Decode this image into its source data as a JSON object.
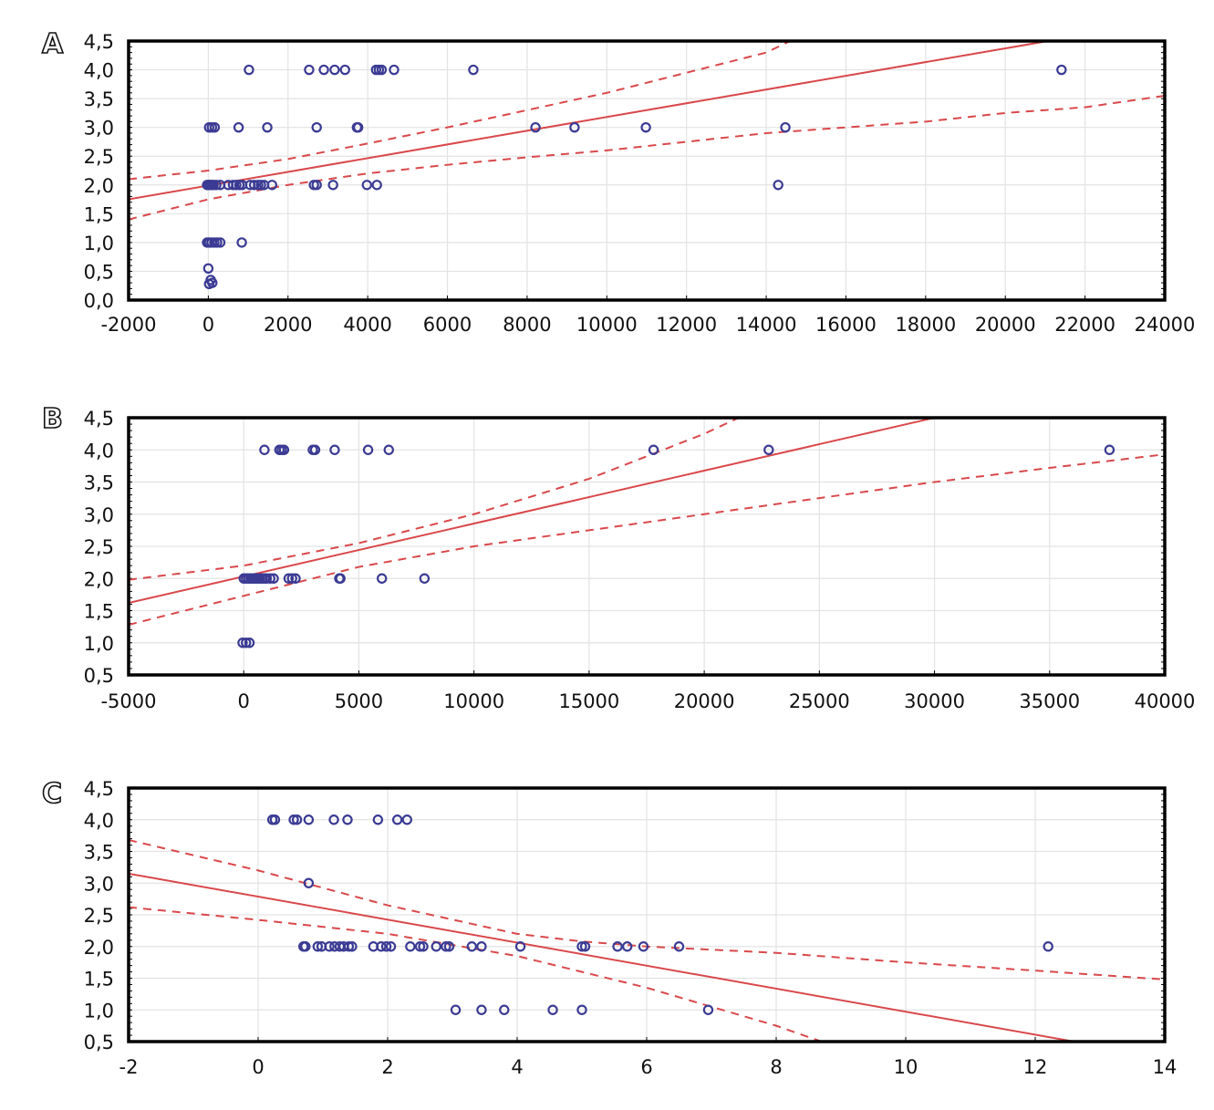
{
  "figure": {
    "panels": [
      "A",
      "B",
      "C"
    ]
  },
  "chart_data": [
    {
      "panel": "A",
      "type": "scatter",
      "title": "",
      "xlabel": "",
      "ylabel": "",
      "xlim": [
        -2000,
        24000
      ],
      "ylim": [
        0,
        4.5
      ],
      "xticks": [
        -2000,
        0,
        2000,
        4000,
        6000,
        8000,
        10000,
        12000,
        14000,
        16000,
        18000,
        20000,
        22000,
        24000
      ],
      "xtick_labels": [
        "-2000",
        "0",
        "2000",
        "4000",
        "6000",
        "8000",
        "10000",
        "12000",
        "14000",
        "16000",
        "18000",
        "20000",
        "22000",
        "24000"
      ],
      "yticks": [
        0,
        0.5,
        1,
        1.5,
        2,
        2.5,
        3,
        3.5,
        4,
        4.5
      ],
      "ytick_labels": [
        "0,0",
        "0,5",
        "1,0",
        "1,5",
        "2,0",
        "2,5",
        "3,0",
        "3,5",
        "4,0",
        "4,5"
      ],
      "grid": true,
      "points": [
        [
          1020,
          4
        ],
        [
          2530,
          4
        ],
        [
          2900,
          4
        ],
        [
          3170,
          4
        ],
        [
          3430,
          4
        ],
        [
          4210,
          4
        ],
        [
          4280,
          4
        ],
        [
          4350,
          4
        ],
        [
          4660,
          4
        ],
        [
          6650,
          4
        ],
        [
          21410,
          4
        ],
        [
          20,
          3
        ],
        [
          90,
          3
        ],
        [
          160,
          3
        ],
        [
          760,
          3
        ],
        [
          1480,
          3
        ],
        [
          2720,
          3
        ],
        [
          3730,
          3
        ],
        [
          3760,
          3
        ],
        [
          8210,
          3
        ],
        [
          9190,
          3
        ],
        [
          10980,
          3
        ],
        [
          14480,
          3
        ],
        [
          -30,
          2
        ],
        [
          0,
          2
        ],
        [
          30,
          2
        ],
        [
          60,
          2
        ],
        [
          90,
          2
        ],
        [
          130,
          2
        ],
        [
          200,
          2
        ],
        [
          300,
          2
        ],
        [
          500,
          2
        ],
        [
          620,
          2
        ],
        [
          700,
          2
        ],
        [
          780,
          2
        ],
        [
          850,
          2
        ],
        [
          1050,
          2
        ],
        [
          1150,
          2
        ],
        [
          1250,
          2
        ],
        [
          1320,
          2
        ],
        [
          1400,
          2
        ],
        [
          1600,
          2
        ],
        [
          2650,
          2
        ],
        [
          2720,
          2
        ],
        [
          3130,
          2
        ],
        [
          3980,
          2
        ],
        [
          4230,
          2
        ],
        [
          14300,
          2
        ],
        [
          -30,
          1
        ],
        [
          20,
          1
        ],
        [
          80,
          1
        ],
        [
          150,
          1
        ],
        [
          220,
          1
        ],
        [
          300,
          1
        ],
        [
          840,
          1
        ],
        [
          0,
          0.55
        ],
        [
          60,
          0.35
        ],
        [
          100,
          0.3
        ],
        [
          20,
          0.28
        ]
      ],
      "regression": {
        "x": [
          -2000,
          24000
        ],
        "y": [
          1.75,
          4.85
        ]
      },
      "ci_upper": {
        "x": [
          -2000,
          0,
          2000,
          4000,
          6000,
          8000,
          10000,
          12000,
          14000,
          14600
        ],
        "y": [
          2.1,
          2.25,
          2.45,
          2.72,
          3.0,
          3.3,
          3.6,
          3.95,
          4.3,
          4.5
        ]
      },
      "ci_lower": {
        "x": [
          -2000,
          0,
          2000,
          4000,
          6000,
          8000,
          10000,
          12000,
          14000,
          16000,
          18000,
          20000,
          22000,
          24000
        ],
        "y": [
          1.4,
          1.75,
          2.0,
          2.2,
          2.35,
          2.48,
          2.6,
          2.75,
          2.9,
          3.0,
          3.1,
          3.25,
          3.35,
          3.55
        ]
      }
    },
    {
      "panel": "B",
      "type": "scatter",
      "title": "",
      "xlabel": "",
      "ylabel": "",
      "xlim": [
        -5000,
        40000
      ],
      "ylim": [
        0.5,
        4.5
      ],
      "xticks": [
        -5000,
        0,
        5000,
        10000,
        15000,
        20000,
        25000,
        30000,
        35000,
        40000
      ],
      "xtick_labels": [
        "-5000",
        "0",
        "5000",
        "10000",
        "15000",
        "20000",
        "25000",
        "30000",
        "35000",
        "40000"
      ],
      "yticks": [
        0.5,
        1,
        1.5,
        2,
        2.5,
        3,
        3.5,
        4,
        4.5
      ],
      "ytick_labels": [
        "0,5",
        "1,0",
        "1,5",
        "2,0",
        "2,5",
        "3,0",
        "3,5",
        "4,0",
        "4,5"
      ],
      "grid": true,
      "points": [
        [
          900,
          4
        ],
        [
          1550,
          4
        ],
        [
          1650,
          4
        ],
        [
          1750,
          4
        ],
        [
          3000,
          4
        ],
        [
          3100,
          4
        ],
        [
          3950,
          4
        ],
        [
          5400,
          4
        ],
        [
          6300,
          4
        ],
        [
          17800,
          4
        ],
        [
          22800,
          4
        ],
        [
          37600,
          4
        ],
        [
          0,
          2
        ],
        [
          100,
          2
        ],
        [
          200,
          2
        ],
        [
          300,
          2
        ],
        [
          400,
          2
        ],
        [
          500,
          2
        ],
        [
          600,
          2
        ],
        [
          700,
          2
        ],
        [
          800,
          2
        ],
        [
          900,
          2
        ],
        [
          1000,
          2
        ],
        [
          1150,
          2
        ],
        [
          1300,
          2
        ],
        [
          1950,
          2
        ],
        [
          2100,
          2
        ],
        [
          2250,
          2
        ],
        [
          4150,
          2
        ],
        [
          4200,
          2
        ],
        [
          6000,
          2
        ],
        [
          7850,
          2
        ],
        [
          -50,
          1
        ],
        [
          100,
          1
        ],
        [
          250,
          1
        ]
      ],
      "regression": {
        "x": [
          -5000,
          30000
        ],
        "y": [
          1.62,
          4.5
        ]
      },
      "ci_upper": {
        "x": [
          -5000,
          0,
          5000,
          10000,
          15000,
          20000,
          21500
        ],
        "y": [
          1.98,
          2.2,
          2.55,
          3.0,
          3.55,
          4.25,
          4.5
        ]
      },
      "ci_lower": {
        "x": [
          -5000,
          0,
          5000,
          10000,
          15000,
          20000,
          25000,
          30000,
          35000,
          40000
        ],
        "y": [
          1.28,
          1.73,
          2.18,
          2.5,
          2.75,
          3.0,
          3.25,
          3.5,
          3.72,
          3.93
        ]
      }
    },
    {
      "panel": "C",
      "type": "scatter",
      "title": "",
      "xlabel": "",
      "ylabel": "",
      "xlim": [
        -2,
        14
      ],
      "ylim": [
        0.5,
        4.5
      ],
      "xticks": [
        -2,
        0,
        2,
        4,
        6,
        8,
        10,
        12,
        14
      ],
      "xtick_labels": [
        "-2",
        "0",
        "2",
        "4",
        "6",
        "8",
        "10",
        "12",
        "14"
      ],
      "yticks": [
        0.5,
        1,
        1.5,
        2,
        2.5,
        3,
        3.5,
        4,
        4.5
      ],
      "ytick_labels": [
        "0,5",
        "1,0",
        "1,5",
        "2,0",
        "2,5",
        "3,0",
        "3,5",
        "4,0",
        "4,5"
      ],
      "grid": true,
      "points": [
        [
          0.22,
          4
        ],
        [
          0.26,
          4
        ],
        [
          0.55,
          4
        ],
        [
          0.6,
          4
        ],
        [
          0.78,
          4
        ],
        [
          1.17,
          4
        ],
        [
          1.38,
          4
        ],
        [
          1.85,
          4
        ],
        [
          2.15,
          4
        ],
        [
          2.3,
          4
        ],
        [
          0.78,
          3
        ],
        [
          0.7,
          2
        ],
        [
          0.73,
          2
        ],
        [
          0.92,
          2
        ],
        [
          0.98,
          2
        ],
        [
          1.1,
          2
        ],
        [
          1.18,
          2
        ],
        [
          1.26,
          2
        ],
        [
          1.32,
          2
        ],
        [
          1.4,
          2
        ],
        [
          1.45,
          2
        ],
        [
          1.78,
          2
        ],
        [
          1.9,
          2
        ],
        [
          1.98,
          2
        ],
        [
          2.05,
          2
        ],
        [
          2.35,
          2
        ],
        [
          2.5,
          2
        ],
        [
          2.55,
          2
        ],
        [
          2.75,
          2
        ],
        [
          2.9,
          2
        ],
        [
          2.95,
          2
        ],
        [
          3.3,
          2
        ],
        [
          3.45,
          2
        ],
        [
          4.05,
          2
        ],
        [
          5.0,
          2
        ],
        [
          5.05,
          2
        ],
        [
          5.55,
          2
        ],
        [
          5.7,
          2
        ],
        [
          5.95,
          2
        ],
        [
          6.5,
          2
        ],
        [
          12.2,
          2
        ],
        [
          3.05,
          1
        ],
        [
          3.45,
          1
        ],
        [
          3.8,
          1
        ],
        [
          4.55,
          1
        ],
        [
          5.0,
          1
        ],
        [
          6.95,
          1
        ]
      ],
      "regression": {
        "x": [
          -2,
          12.6
        ],
        "y": [
          3.15,
          0.5
        ]
      },
      "ci_upper": {
        "x": [
          -2,
          0,
          2,
          4,
          5,
          6,
          8,
          10,
          12,
          14
        ],
        "y": [
          3.68,
          3.2,
          2.65,
          2.2,
          2.08,
          2.0,
          1.9,
          1.75,
          1.62,
          1.48
        ]
      },
      "ci_lower": {
        "x": [
          -2,
          0,
          2,
          4,
          6,
          8,
          8.7
        ],
        "y": [
          2.62,
          2.42,
          2.2,
          1.85,
          1.35,
          0.75,
          0.5
        ]
      }
    }
  ]
}
